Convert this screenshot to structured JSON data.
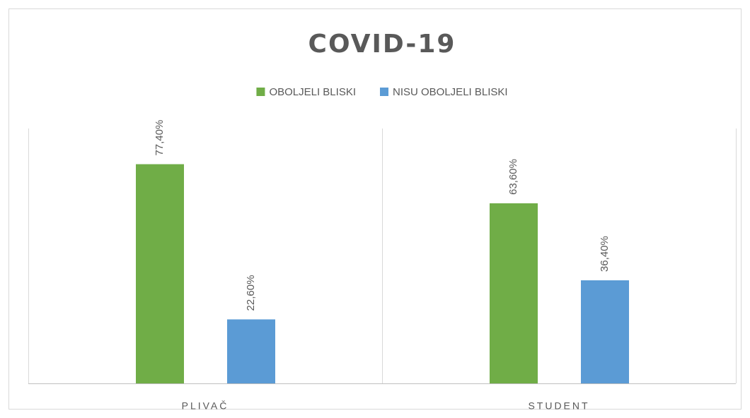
{
  "chart_data": {
    "type": "bar",
    "title": "COVID-19",
    "categories": [
      "PLIVAČ",
      "STUDENT"
    ],
    "series": [
      {
        "name": "OBOLJELI BLISKI",
        "color": "#70ad47",
        "values": [
          77.4,
          63.6
        ],
        "value_labels": [
          "77,40%",
          "63,60%"
        ]
      },
      {
        "name": "NISU OBOLJELI BLISKI",
        "color": "#5b9bd5",
        "values": [
          22.6,
          36.4
        ],
        "value_labels": [
          "22,60%",
          "36,40%"
        ]
      }
    ],
    "ylim": [
      0,
      90
    ],
    "legend": "top"
  }
}
